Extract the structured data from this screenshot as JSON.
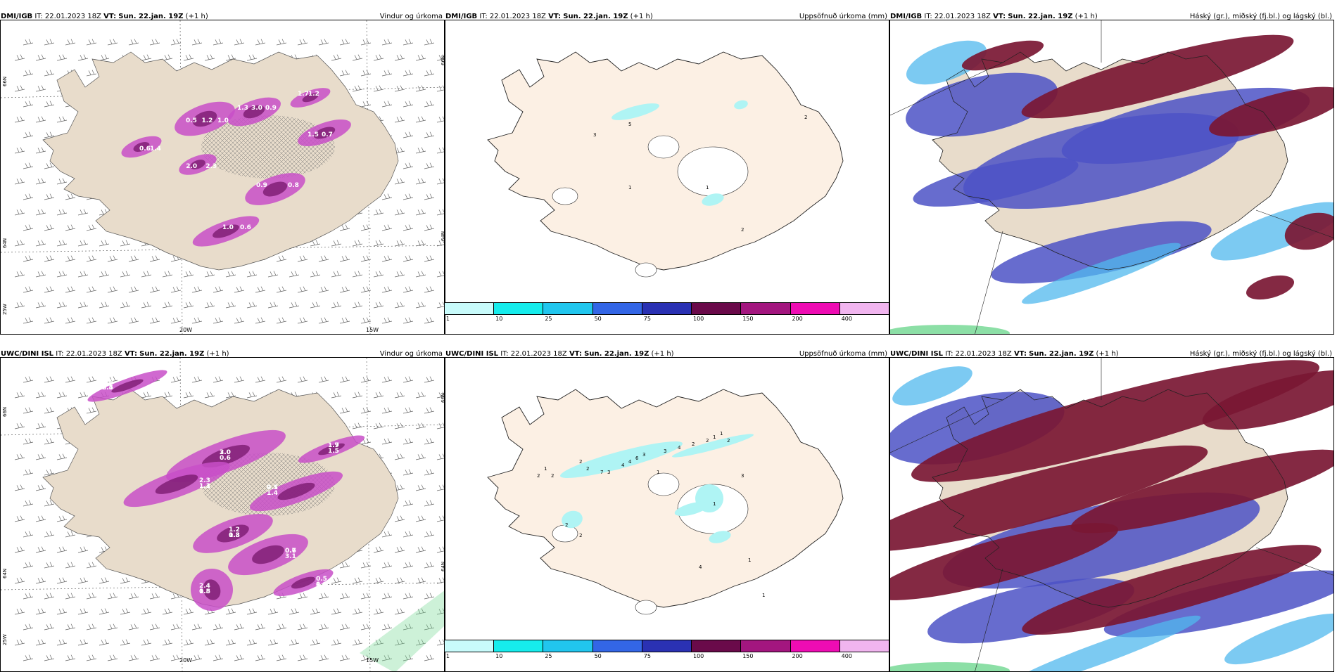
{
  "rows": [
    {
      "model": "DMI/IGB",
      "it_label": "IT:",
      "it_value": "22.01.2023 18Z",
      "vt_label": "VT:",
      "vt_value": "Sun. 22.jan. 19Z",
      "lead": "(+1 h)"
    },
    {
      "model": "UWC/DINI ISL",
      "it_label": "IT:",
      "it_value": "22.01.2023 18Z",
      "vt_label": "VT:",
      "vt_value": "Sun. 22.jan. 19Z",
      "lead": "(+1 h)"
    }
  ],
  "panels": {
    "wind": {
      "title": "Vindur og úrkoma"
    },
    "precip": {
      "title": "Uppsöfnuð úrkoma (mm)"
    },
    "cloud": {
      "title": "Háský (gr.), miðský (fj.bl.) og lágský (bl.)"
    }
  },
  "axes": {
    "lon_20": "20W",
    "lon_15": "15W",
    "lat_66": "66N",
    "lat_64": "64N",
    "lon_25": "25W"
  },
  "colorbar": {
    "colors": [
      "#c8fbfb",
      "#16ecec",
      "#21c6ee",
      "#3366e6",
      "#2a31b3",
      "#6a0a4a",
      "#a3167f",
      "#ee0cb3",
      "#f1b5ef"
    ],
    "ticks": [
      "1",
      "10",
      "25",
      "50",
      "75",
      "100",
      "150",
      "200",
      "400"
    ]
  },
  "values": {
    "wind_top": [
      "0.5",
      "3.0",
      "1.4",
      "0.9",
      "0.7",
      "0.6",
      "2.0",
      "1.2",
      "1.0",
      "1.3",
      "0.6",
      "0.8",
      "1.5",
      "1.0",
      "2.3",
      "1.7",
      "1.2",
      "0.9"
    ],
    "wind_bottom": [
      "0.5",
      "2.0",
      "1.1",
      "2.1",
      "1.3",
      "0.6",
      "1.8",
      "1.7",
      "4.4",
      "3.6",
      "0.6",
      "2.3",
      "1.4",
      "1.2",
      "3.1",
      "2.4",
      "1.5",
      "0.5",
      "2.4",
      "3.0",
      "1.3",
      "0.5",
      "0.8",
      "0.7",
      "0.5",
      "1.9",
      "9.9"
    ],
    "precip_top": [
      "3",
      "5",
      "1",
      "1",
      "2",
      "2"
    ],
    "precip_bottom": [
      "2",
      "1",
      "2",
      "2",
      "2",
      "7",
      "4",
      "4",
      "6",
      "3",
      "3",
      "4",
      "2",
      "2",
      "1",
      "1",
      "3",
      "1",
      "3",
      "2",
      "1",
      "2",
      "2",
      "4",
      "1",
      "1"
    ]
  },
  "colors": {
    "land": "#e8dccb",
    "land_precip": "#fcf0e4",
    "precip_light": "#aff4f4",
    "magenta": "#c84fc8",
    "dark_magenta": "#7c1a70",
    "maroon": "#7a1733",
    "blue": "#4c52c5",
    "light_blue": "#50b8ee",
    "green": "#6fd790"
  }
}
